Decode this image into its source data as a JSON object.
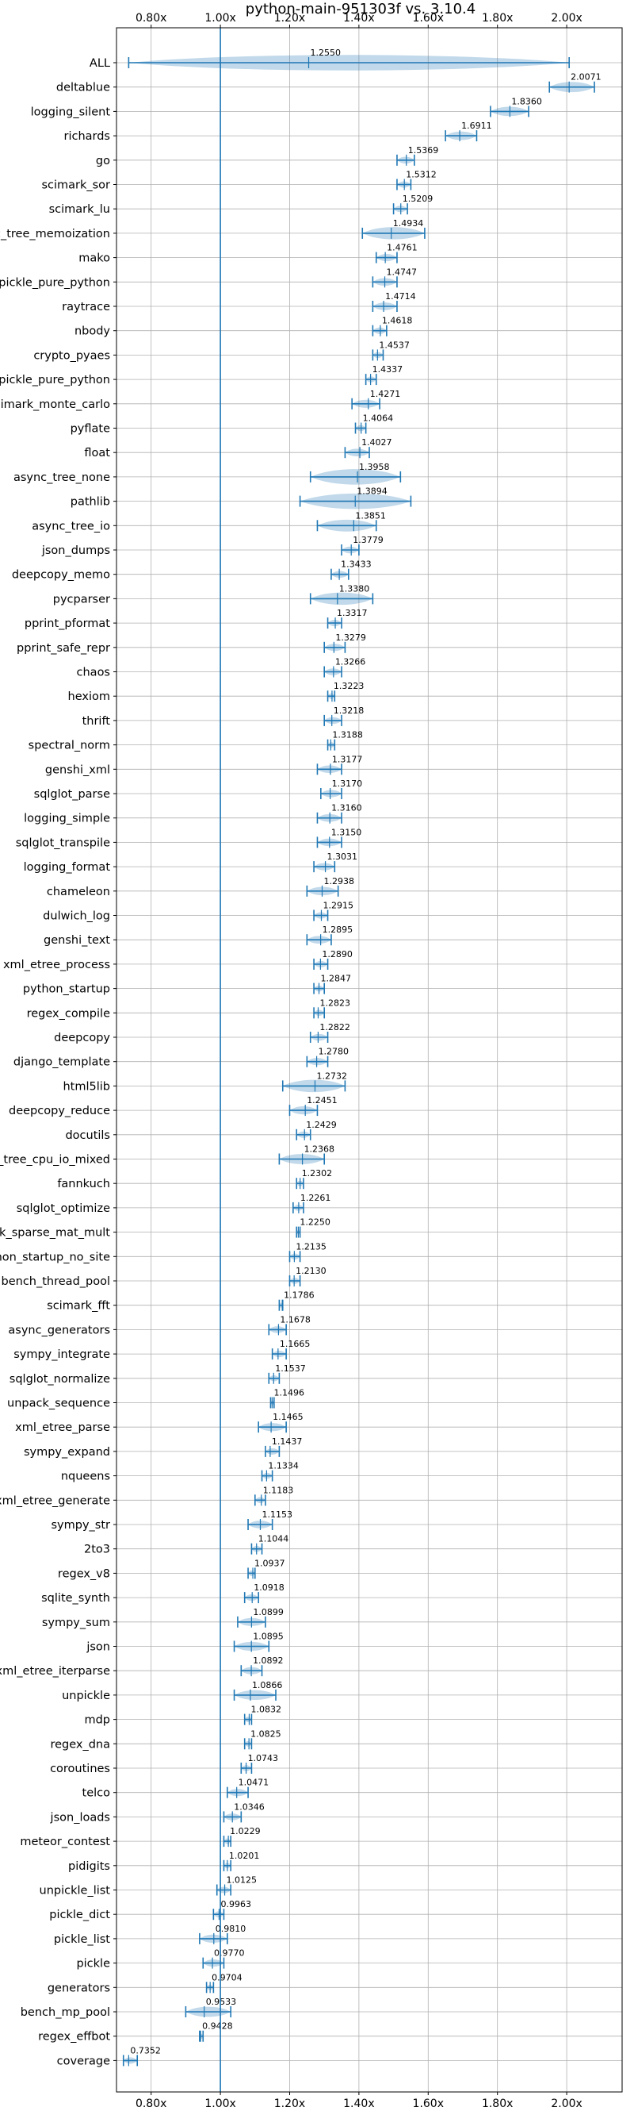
{
  "chart_data": {
    "type": "violin",
    "title": "python-main-951303f vs. 3.10.4",
    "xlabel": "",
    "ylabel": "",
    "xlim": [
      0.7,
      2.16
    ],
    "xticks": [
      0.8,
      1.0,
      1.2,
      1.4,
      1.6,
      1.8,
      2.0
    ],
    "xtick_labels": [
      "0.80x",
      "1.00x",
      "1.20x",
      "1.40x",
      "1.60x",
      "1.80x",
      "2.00x"
    ],
    "tick_positions": "top-and-bottom",
    "reference_line": 1.0,
    "grid": true,
    "colors": {
      "accent": "#1f77b4",
      "violin": "#1f77b4",
      "grid": "#b0b0b0"
    },
    "categories": [
      "ALL",
      "deltablue",
      "logging_silent",
      "richards",
      "go",
      "scimark_sor",
      "scimark_lu",
      "async_tree_memoization",
      "mako",
      "pickle_pure_python",
      "raytrace",
      "nbody",
      "crypto_pyaes",
      "unpickle_pure_python",
      "scimark_monte_carlo",
      "pyflate",
      "float",
      "async_tree_none",
      "pathlib",
      "async_tree_io",
      "json_dumps",
      "deepcopy_memo",
      "pycparser",
      "pprint_pformat",
      "pprint_safe_repr",
      "chaos",
      "hexiom",
      "thrift",
      "spectral_norm",
      "genshi_xml",
      "sqlglot_parse",
      "logging_simple",
      "sqlglot_transpile",
      "logging_format",
      "chameleon",
      "dulwich_log",
      "genshi_text",
      "xml_etree_process",
      "python_startup",
      "regex_compile",
      "deepcopy",
      "django_template",
      "html5lib",
      "deepcopy_reduce",
      "docutils",
      "async_tree_cpu_io_mixed",
      "fannkuch",
      "sqlglot_optimize",
      "scimark_sparse_mat_mult",
      "python_startup_no_site",
      "bench_thread_pool",
      "scimark_fft",
      "async_generators",
      "sympy_integrate",
      "sqlglot_normalize",
      "unpack_sequence",
      "xml_etree_parse",
      "sympy_expand",
      "nqueens",
      "xml_etree_generate",
      "sympy_str",
      "2to3",
      "regex_v8",
      "sqlite_synth",
      "sympy_sum",
      "json",
      "xml_etree_iterparse",
      "unpickle",
      "mdp",
      "regex_dna",
      "coroutines",
      "telco",
      "json_loads",
      "meteor_contest",
      "pidigits",
      "unpickle_list",
      "pickle_dict",
      "pickle_list",
      "pickle",
      "generators",
      "bench_mp_pool",
      "regex_effbot",
      "coverage"
    ],
    "values": [
      1.255,
      2.0071,
      1.836,
      1.6911,
      1.5369,
      1.5312,
      1.5209,
      1.4934,
      1.4761,
      1.4747,
      1.4714,
      1.4618,
      1.4537,
      1.4337,
      1.4271,
      1.4064,
      1.4027,
      1.3958,
      1.3894,
      1.3851,
      1.3779,
      1.3433,
      1.338,
      1.3317,
      1.3279,
      1.3266,
      1.3223,
      1.3218,
      1.3188,
      1.3177,
      1.317,
      1.316,
      1.315,
      1.3031,
      1.2938,
      1.2915,
      1.2895,
      1.289,
      1.2847,
      1.2823,
      1.2822,
      1.278,
      1.2732,
      1.2451,
      1.2429,
      1.2368,
      1.2302,
      1.2261,
      1.225,
      1.2135,
      1.213,
      1.1786,
      1.1678,
      1.1665,
      1.1537,
      1.1496,
      1.1465,
      1.1437,
      1.1334,
      1.1183,
      1.1153,
      1.1044,
      1.0937,
      1.0918,
      1.0899,
      1.0895,
      1.0892,
      1.0866,
      1.0832,
      1.0825,
      1.0743,
      1.0471,
      1.0346,
      1.0229,
      1.0201,
      1.0125,
      0.9963,
      0.981,
      0.977,
      0.9704,
      0.9533,
      0.9428,
      0.7352
    ],
    "value_labels": [
      "1.2550",
      "2.0071",
      "1.8360",
      "1.6911",
      "1.5369",
      "1.5312",
      "1.5209",
      "1.4934",
      "1.4761",
      "1.4747",
      "1.4714",
      "1.4618",
      "1.4537",
      "1.4337",
      "1.4271",
      "1.4064",
      "1.4027",
      "1.3958",
      "1.3894",
      "1.3851",
      "1.3779",
      "1.3433",
      "1.3380",
      "1.3317",
      "1.3279",
      "1.3266",
      "1.3223",
      "1.3218",
      "1.3188",
      "1.3177",
      "1.3170",
      "1.3160",
      "1.3150",
      "1.3031",
      "1.2938",
      "1.2915",
      "1.2895",
      "1.2890",
      "1.2847",
      "1.2823",
      "1.2822",
      "1.2780",
      "1.2732",
      "1.2451",
      "1.2429",
      "1.2368",
      "1.2302",
      "1.2261",
      "1.2250",
      "1.2135",
      "1.2130",
      "1.1786",
      "1.1678",
      "1.1665",
      "1.1537",
      "1.1496",
      "1.1465",
      "1.1437",
      "1.1334",
      "1.1183",
      "1.1153",
      "1.1044",
      "1.0937",
      "1.0918",
      "1.0899",
      "1.0895",
      "1.0892",
      "1.0866",
      "1.0832",
      "1.0825",
      "1.0743",
      "1.0471",
      "1.0346",
      "1.0229",
      "1.0201",
      "1.0125",
      "0.9963",
      "0.9810",
      "0.9770",
      "0.9704",
      "0.9533",
      "0.9428",
      "0.7352"
    ],
    "ranges": {
      "ALL": [
        0.7352,
        2.0071
      ],
      "deltablue": [
        1.95,
        2.08
      ],
      "logging_silent": [
        1.78,
        1.89
      ],
      "richards": [
        1.65,
        1.74
      ],
      "go": [
        1.51,
        1.56
      ],
      "scimark_sor": [
        1.51,
        1.55
      ],
      "scimark_lu": [
        1.5,
        1.54
      ],
      "async_tree_memoization": [
        1.41,
        1.59
      ],
      "mako": [
        1.45,
        1.51
      ],
      "pickle_pure_python": [
        1.44,
        1.51
      ],
      "raytrace": [
        1.44,
        1.51
      ],
      "nbody": [
        1.44,
        1.48
      ],
      "crypto_pyaes": [
        1.44,
        1.47
      ],
      "unpickle_pure_python": [
        1.42,
        1.45
      ],
      "scimark_monte_carlo": [
        1.38,
        1.46
      ],
      "pyflate": [
        1.39,
        1.42
      ],
      "float": [
        1.36,
        1.43
      ],
      "async_tree_none": [
        1.26,
        1.52
      ],
      "pathlib": [
        1.23,
        1.55
      ],
      "async_tree_io": [
        1.28,
        1.45
      ],
      "json_dumps": [
        1.35,
        1.4
      ],
      "deepcopy_memo": [
        1.32,
        1.37
      ],
      "pycparser": [
        1.26,
        1.44
      ],
      "pprint_pformat": [
        1.31,
        1.35
      ],
      "pprint_safe_repr": [
        1.3,
        1.36
      ],
      "chaos": [
        1.3,
        1.35
      ],
      "hexiom": [
        1.31,
        1.33
      ],
      "thrift": [
        1.3,
        1.35
      ],
      "spectral_norm": [
        1.31,
        1.33
      ],
      "genshi_xml": [
        1.28,
        1.35
      ],
      "sqlglot_parse": [
        1.29,
        1.35
      ],
      "logging_simple": [
        1.28,
        1.35
      ],
      "sqlglot_transpile": [
        1.28,
        1.35
      ],
      "logging_format": [
        1.27,
        1.33
      ],
      "chameleon": [
        1.25,
        1.34
      ],
      "dulwich_log": [
        1.27,
        1.31
      ],
      "genshi_text": [
        1.25,
        1.32
      ],
      "xml_etree_process": [
        1.27,
        1.31
      ],
      "python_startup": [
        1.27,
        1.3
      ],
      "regex_compile": [
        1.27,
        1.3
      ],
      "deepcopy": [
        1.26,
        1.31
      ],
      "django_template": [
        1.25,
        1.31
      ],
      "html5lib": [
        1.18,
        1.36
      ],
      "deepcopy_reduce": [
        1.2,
        1.28
      ],
      "docutils": [
        1.22,
        1.26
      ],
      "async_tree_cpu_io_mixed": [
        1.17,
        1.3
      ],
      "fannkuch": [
        1.22,
        1.24
      ],
      "sqlglot_optimize": [
        1.21,
        1.24
      ],
      "scimark_sparse_mat_mult": [
        1.22,
        1.23
      ],
      "python_startup_no_site": [
        1.2,
        1.23
      ],
      "bench_thread_pool": [
        1.2,
        1.23
      ],
      "scimark_fft": [
        1.17,
        1.18
      ],
      "async_generators": [
        1.14,
        1.19
      ],
      "sympy_integrate": [
        1.15,
        1.19
      ],
      "sqlglot_normalize": [
        1.14,
        1.17
      ],
      "unpack_sequence": [
        1.145,
        1.155
      ],
      "xml_etree_parse": [
        1.11,
        1.19
      ],
      "sympy_expand": [
        1.13,
        1.17
      ],
      "nqueens": [
        1.12,
        1.15
      ],
      "xml_etree_generate": [
        1.1,
        1.13
      ],
      "sympy_str": [
        1.08,
        1.15
      ],
      "2to3": [
        1.09,
        1.12
      ],
      "regex_v8": [
        1.08,
        1.1
      ],
      "sqlite_synth": [
        1.07,
        1.11
      ],
      "sympy_sum": [
        1.05,
        1.13
      ],
      "json": [
        1.04,
        1.14
      ],
      "xml_etree_iterparse": [
        1.06,
        1.12
      ],
      "unpickle": [
        1.04,
        1.16
      ],
      "mdp": [
        1.07,
        1.09
      ],
      "regex_dna": [
        1.07,
        1.09
      ],
      "coroutines": [
        1.06,
        1.09
      ],
      "telco": [
        1.02,
        1.08
      ],
      "json_loads": [
        1.01,
        1.06
      ],
      "meteor_contest": [
        1.01,
        1.03
      ],
      "pidigits": [
        1.01,
        1.03
      ],
      "unpickle_list": [
        0.99,
        1.03
      ],
      "pickle_dict": [
        0.98,
        1.01
      ],
      "pickle_list": [
        0.94,
        1.02
      ],
      "pickle": [
        0.95,
        1.01
      ],
      "generators": [
        0.96,
        0.98
      ],
      "bench_mp_pool": [
        0.9,
        1.03
      ],
      "regex_effbot": [
        0.94,
        0.95
      ],
      "coverage": [
        0.72,
        0.76
      ]
    }
  }
}
